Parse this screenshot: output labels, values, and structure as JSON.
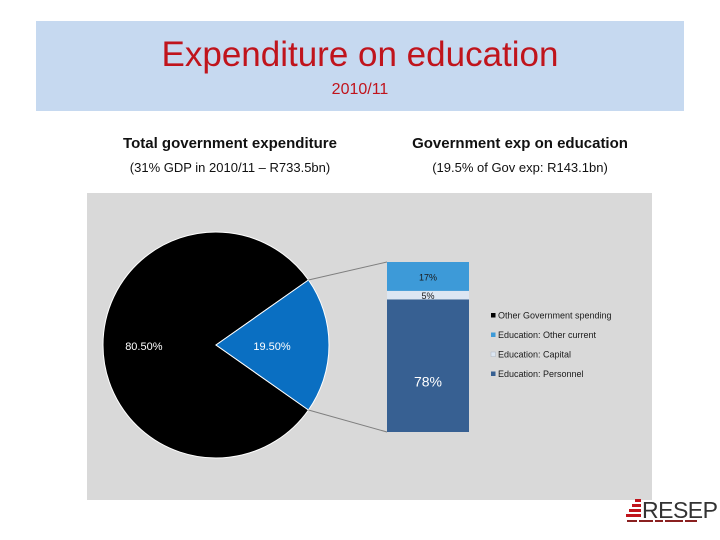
{
  "header": {
    "title": "Expenditure on education",
    "subtitle": "2010/11"
  },
  "left_panel": {
    "heading": "Total government expenditure",
    "subheading": "(31% GDP in 2010/11 – R733.5bn)"
  },
  "right_panel": {
    "heading": "Government exp on education",
    "subheading": "(19.5% of Gov exp:  R143.1bn)"
  },
  "logo": {
    "text": "RESEP"
  },
  "chart_data": [
    {
      "type": "pie",
      "labels": [
        "",
        ""
      ],
      "values": [
        80.5,
        19.5
      ],
      "data_labels": [
        "80.50%",
        "19.50%"
      ],
      "colors": [
        "#000000",
        "#0a6fc2"
      ]
    },
    {
      "type": "bar",
      "stacked": true,
      "segments": [
        {
          "name": "Education: Personnel",
          "value": 78,
          "label": "78%",
          "color": "#376092"
        },
        {
          "name": "Education: Capital",
          "value": 5,
          "label": "5%",
          "color": "#dce6f2"
        },
        {
          "name": "Education: Other current",
          "value": 17,
          "label": "17%",
          "color": "#3d9ad8"
        }
      ],
      "legend": {
        "position": "right",
        "entries": [
          {
            "name": "Other Government spending",
            "color": "#000000"
          },
          {
            "name": "Education: Other current",
            "color": "#3d9ad8"
          },
          {
            "name": "Education: Capital",
            "color": "#dce6f2"
          },
          {
            "name": "Education: Personnel",
            "color": "#376092"
          }
        ]
      }
    }
  ]
}
